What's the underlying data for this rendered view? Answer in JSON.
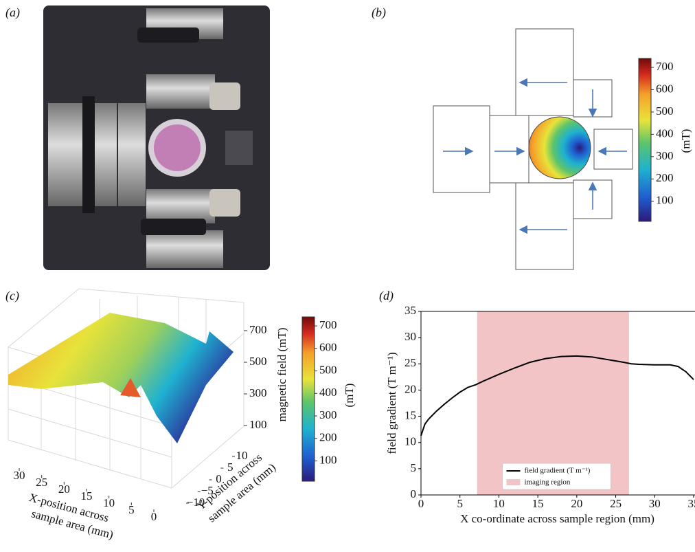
{
  "panel_labels": [
    "(a)",
    "(b)",
    "(c)",
    "(d)"
  ],
  "figure_b": {
    "colorbar": {
      "label": "(mT)",
      "clim": [
        10,
        740
      ],
      "ticks": [
        100,
        200,
        300,
        400,
        500,
        600,
        700
      ]
    }
  },
  "figure_c": {
    "zlabel": "magnetic field (mT)",
    "zlim": [
      0,
      800
    ],
    "zticks": [
      100,
      300,
      500,
      700
    ],
    "xlabel_lines": [
      "X-position across",
      "sample area (mm)"
    ],
    "xlim": [
      0,
      30
    ],
    "xticks": [
      30,
      25,
      20,
      15,
      10,
      5,
      0
    ],
    "ylabel_lines": [
      "Y-position across",
      "sample area (mm)"
    ],
    "ylim": [
      -10,
      10
    ],
    "yticks": [
      10,
      5,
      0,
      {
        "value": -5,
        "label": "−5"
      },
      {
        "value": -10,
        "label": "−10"
      }
    ],
    "colorbar": {
      "label": "(mT)",
      "clim": [
        10,
        740
      ],
      "ticks": [
        100,
        200,
        300,
        400,
        500,
        600,
        700
      ]
    }
  },
  "chart_data": {
    "type": "line",
    "xlabel": "X co-ordinate across sample region (mm)",
    "ylabel": "field gradient (T m⁻¹)",
    "x": [
      0,
      0.5,
      1,
      2,
      3,
      4,
      5,
      6,
      7,
      8,
      10,
      12,
      14,
      16,
      18,
      20,
      22,
      24,
      26,
      27,
      28,
      30,
      32,
      33,
      34,
      35
    ],
    "series": [
      {
        "name": "field gradient (T m⁻¹)",
        "color": "#000000",
        "values": [
          11.3,
          13.5,
          14.5,
          16,
          17.3,
          18.5,
          19.6,
          20.5,
          21,
          21.7,
          23,
          24.2,
          25.3,
          26,
          26.4,
          26.5,
          26.3,
          25.8,
          25.3,
          25,
          24.9,
          24.8,
          24.8,
          24.5,
          23.5,
          22
        ]
      }
    ],
    "region": {
      "name": "imaging region",
      "span": [
        7.2,
        26.7
      ],
      "color": "#f2c4c6"
    },
    "xlim": [
      0,
      35
    ],
    "xticks": [
      0,
      5,
      10,
      15,
      20,
      25,
      30,
      35
    ],
    "ylim": [
      0,
      35
    ],
    "yticks": [
      0,
      5,
      10,
      15,
      20,
      25,
      30,
      35
    ],
    "legend": "lower center"
  }
}
